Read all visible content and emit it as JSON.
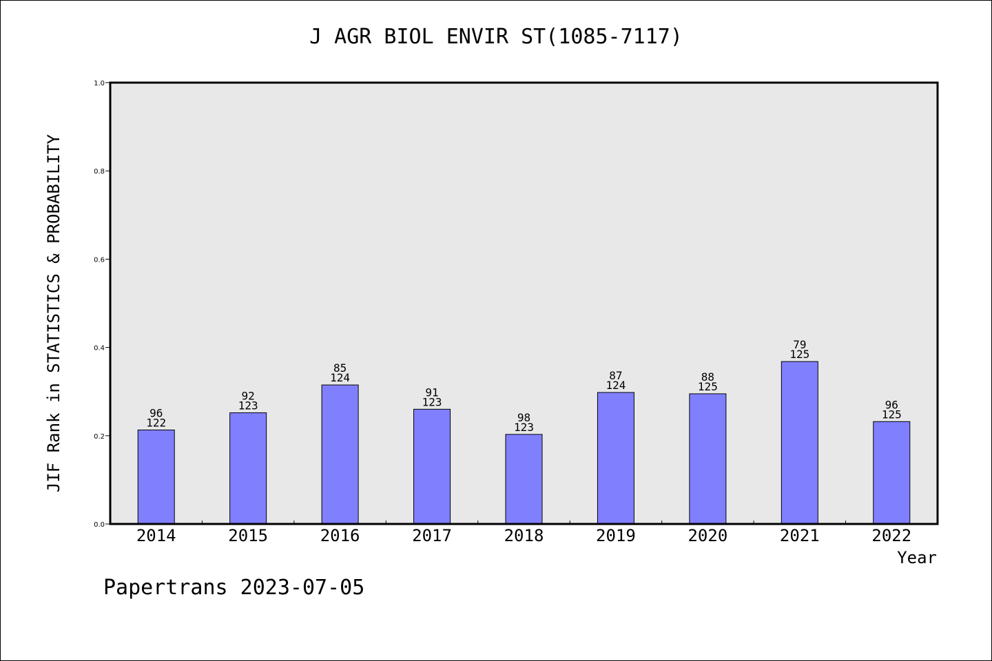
{
  "chart_data": {
    "type": "bar",
    "title": "J AGR BIOL ENVIR ST(1085-7117)",
    "xlabel": "Year",
    "ylabel": "JIF Rank in STATISTICS & PROBABILITY",
    "categories": [
      "2014",
      "2015",
      "2016",
      "2017",
      "2018",
      "2019",
      "2020",
      "2021",
      "2022"
    ],
    "values": [
      0.213,
      0.252,
      0.315,
      0.26,
      0.203,
      0.298,
      0.295,
      0.368,
      0.232
    ],
    "ranks": [
      "96",
      "92",
      "85",
      "91",
      "98",
      "87",
      "88",
      "79",
      "96"
    ],
    "totals": [
      "122",
      "123",
      "124",
      "123",
      "123",
      "124",
      "125",
      "125",
      "125"
    ],
    "ylim": [
      0,
      1.0
    ],
    "yticks": [
      "0.0",
      "0.2",
      "0.4",
      "0.6",
      "0.8",
      "1.0"
    ],
    "grid": false,
    "colors": {
      "bar": "#8080ff",
      "plot_bg": "#e8e8e8",
      "axis": "#000000"
    }
  },
  "footer": "Papertrans 2023-07-05"
}
